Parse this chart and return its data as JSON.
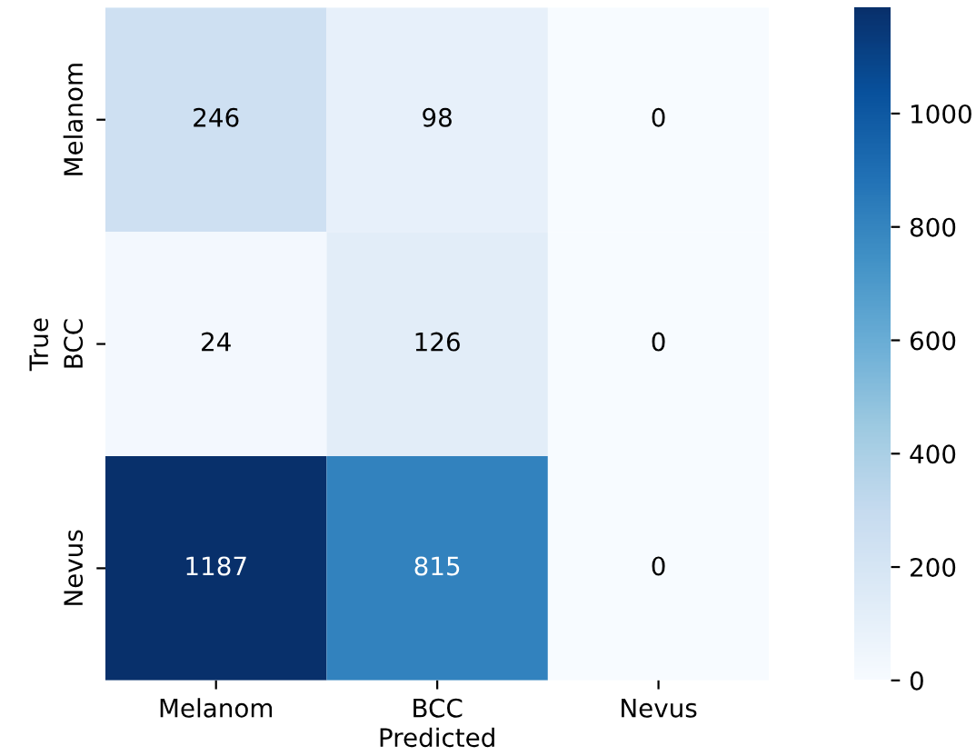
{
  "chart_data": {
    "type": "heatmap",
    "xlabel": "Predicted",
    "ylabel": "True",
    "categories": [
      "Melanom",
      "BCC",
      "Nevus"
    ],
    "y_categories": [
      "Melanom",
      "BCC",
      "Nevus"
    ],
    "cells": [
      [
        246,
        98,
        0
      ],
      [
        24,
        126,
        0
      ],
      [
        1187,
        815,
        0
      ]
    ],
    "clim": [
      0,
      1187
    ],
    "cticks": [
      0,
      200,
      400,
      600,
      800,
      1000
    ],
    "data_labels": true
  }
}
